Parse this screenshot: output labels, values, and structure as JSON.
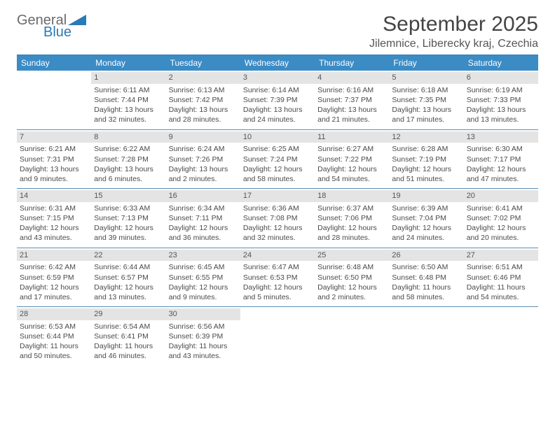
{
  "logo": {
    "word1": "General",
    "word2": "Blue",
    "color_gray": "#6b6b6b",
    "color_blue": "#2a7ab8"
  },
  "title": "September 2025",
  "location": "Jilemnice, Liberecky kraj, Czechia",
  "colors": {
    "header_bg": "#3b8bc4",
    "header_text": "#ffffff",
    "daynum_bg": "#e4e4e4",
    "border": "#5a8db5",
    "body_text": "#4a4a4a"
  },
  "day_names": [
    "Sunday",
    "Monday",
    "Tuesday",
    "Wednesday",
    "Thursday",
    "Friday",
    "Saturday"
  ],
  "weeks": [
    [
      null,
      {
        "n": "1",
        "sr": "6:11 AM",
        "ss": "7:44 PM",
        "dl": "13 hours and 32 minutes."
      },
      {
        "n": "2",
        "sr": "6:13 AM",
        "ss": "7:42 PM",
        "dl": "13 hours and 28 minutes."
      },
      {
        "n": "3",
        "sr": "6:14 AM",
        "ss": "7:39 PM",
        "dl": "13 hours and 24 minutes."
      },
      {
        "n": "4",
        "sr": "6:16 AM",
        "ss": "7:37 PM",
        "dl": "13 hours and 21 minutes."
      },
      {
        "n": "5",
        "sr": "6:18 AM",
        "ss": "7:35 PM",
        "dl": "13 hours and 17 minutes."
      },
      {
        "n": "6",
        "sr": "6:19 AM",
        "ss": "7:33 PM",
        "dl": "13 hours and 13 minutes."
      }
    ],
    [
      {
        "n": "7",
        "sr": "6:21 AM",
        "ss": "7:31 PM",
        "dl": "13 hours and 9 minutes."
      },
      {
        "n": "8",
        "sr": "6:22 AM",
        "ss": "7:28 PM",
        "dl": "13 hours and 6 minutes."
      },
      {
        "n": "9",
        "sr": "6:24 AM",
        "ss": "7:26 PM",
        "dl": "13 hours and 2 minutes."
      },
      {
        "n": "10",
        "sr": "6:25 AM",
        "ss": "7:24 PM",
        "dl": "12 hours and 58 minutes."
      },
      {
        "n": "11",
        "sr": "6:27 AM",
        "ss": "7:22 PM",
        "dl": "12 hours and 54 minutes."
      },
      {
        "n": "12",
        "sr": "6:28 AM",
        "ss": "7:19 PM",
        "dl": "12 hours and 51 minutes."
      },
      {
        "n": "13",
        "sr": "6:30 AM",
        "ss": "7:17 PM",
        "dl": "12 hours and 47 minutes."
      }
    ],
    [
      {
        "n": "14",
        "sr": "6:31 AM",
        "ss": "7:15 PM",
        "dl": "12 hours and 43 minutes."
      },
      {
        "n": "15",
        "sr": "6:33 AM",
        "ss": "7:13 PM",
        "dl": "12 hours and 39 minutes."
      },
      {
        "n": "16",
        "sr": "6:34 AM",
        "ss": "7:11 PM",
        "dl": "12 hours and 36 minutes."
      },
      {
        "n": "17",
        "sr": "6:36 AM",
        "ss": "7:08 PM",
        "dl": "12 hours and 32 minutes."
      },
      {
        "n": "18",
        "sr": "6:37 AM",
        "ss": "7:06 PM",
        "dl": "12 hours and 28 minutes."
      },
      {
        "n": "19",
        "sr": "6:39 AM",
        "ss": "7:04 PM",
        "dl": "12 hours and 24 minutes."
      },
      {
        "n": "20",
        "sr": "6:41 AM",
        "ss": "7:02 PM",
        "dl": "12 hours and 20 minutes."
      }
    ],
    [
      {
        "n": "21",
        "sr": "6:42 AM",
        "ss": "6:59 PM",
        "dl": "12 hours and 17 minutes."
      },
      {
        "n": "22",
        "sr": "6:44 AM",
        "ss": "6:57 PM",
        "dl": "12 hours and 13 minutes."
      },
      {
        "n": "23",
        "sr": "6:45 AM",
        "ss": "6:55 PM",
        "dl": "12 hours and 9 minutes."
      },
      {
        "n": "24",
        "sr": "6:47 AM",
        "ss": "6:53 PM",
        "dl": "12 hours and 5 minutes."
      },
      {
        "n": "25",
        "sr": "6:48 AM",
        "ss": "6:50 PM",
        "dl": "12 hours and 2 minutes."
      },
      {
        "n": "26",
        "sr": "6:50 AM",
        "ss": "6:48 PM",
        "dl": "11 hours and 58 minutes."
      },
      {
        "n": "27",
        "sr": "6:51 AM",
        "ss": "6:46 PM",
        "dl": "11 hours and 54 minutes."
      }
    ],
    [
      {
        "n": "28",
        "sr": "6:53 AM",
        "ss": "6:44 PM",
        "dl": "11 hours and 50 minutes."
      },
      {
        "n": "29",
        "sr": "6:54 AM",
        "ss": "6:41 PM",
        "dl": "11 hours and 46 minutes."
      },
      {
        "n": "30",
        "sr": "6:56 AM",
        "ss": "6:39 PM",
        "dl": "11 hours and 43 minutes."
      },
      null,
      null,
      null,
      null
    ]
  ],
  "labels": {
    "sunrise": "Sunrise:",
    "sunset": "Sunset:",
    "daylight": "Daylight:"
  }
}
